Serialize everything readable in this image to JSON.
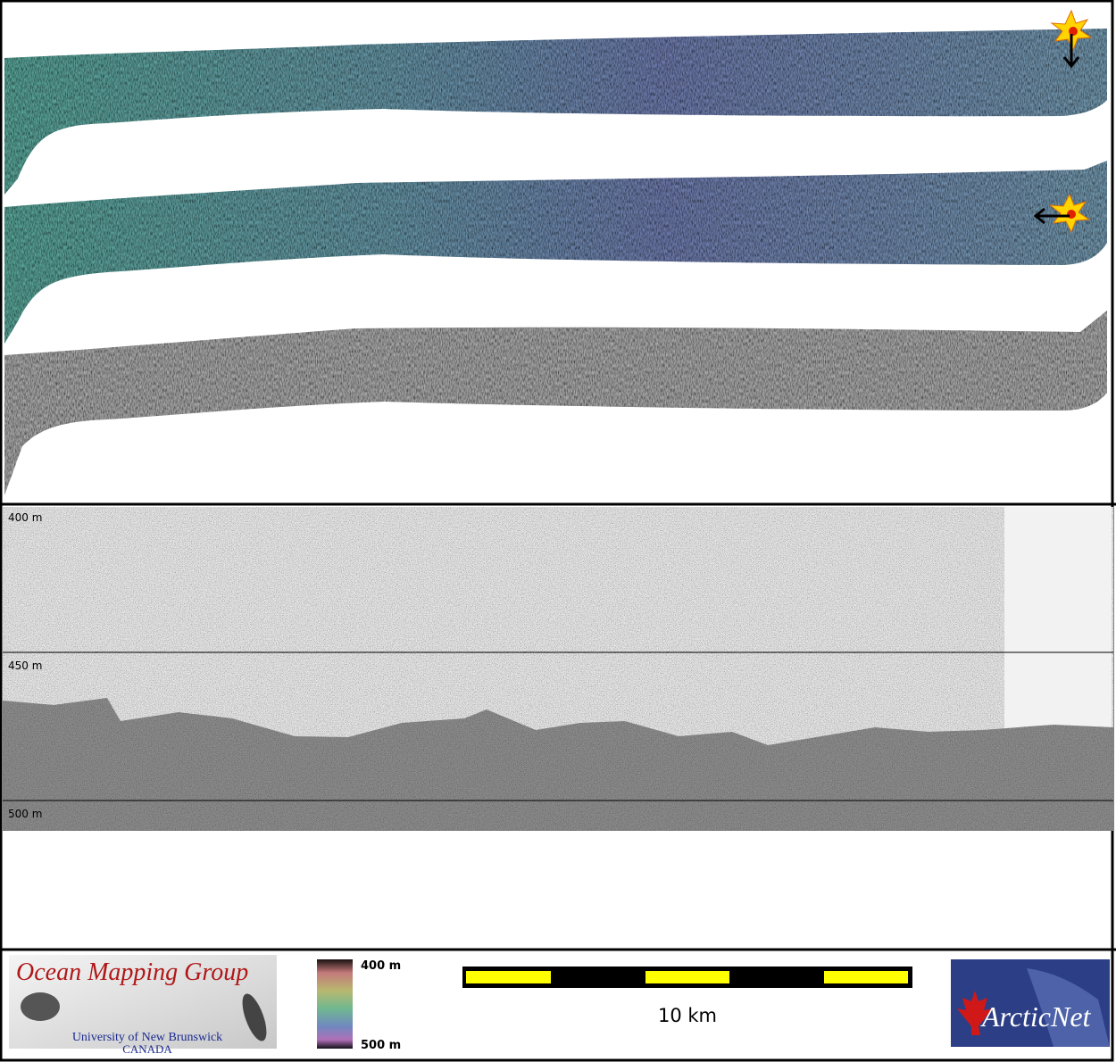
{
  "profile": {
    "depth_labels": [
      "400 m",
      "450 m",
      "500 m"
    ]
  },
  "legend": {
    "top": "400 m",
    "bottom": "500 m"
  },
  "scale_bar": {
    "label": "10 km"
  },
  "logos": {
    "omg_title": "Ocean Mapping Group",
    "omg_university": "University of New Brunswick",
    "omg_country": "CANADA",
    "arcticnet": "ArcticNet"
  }
}
